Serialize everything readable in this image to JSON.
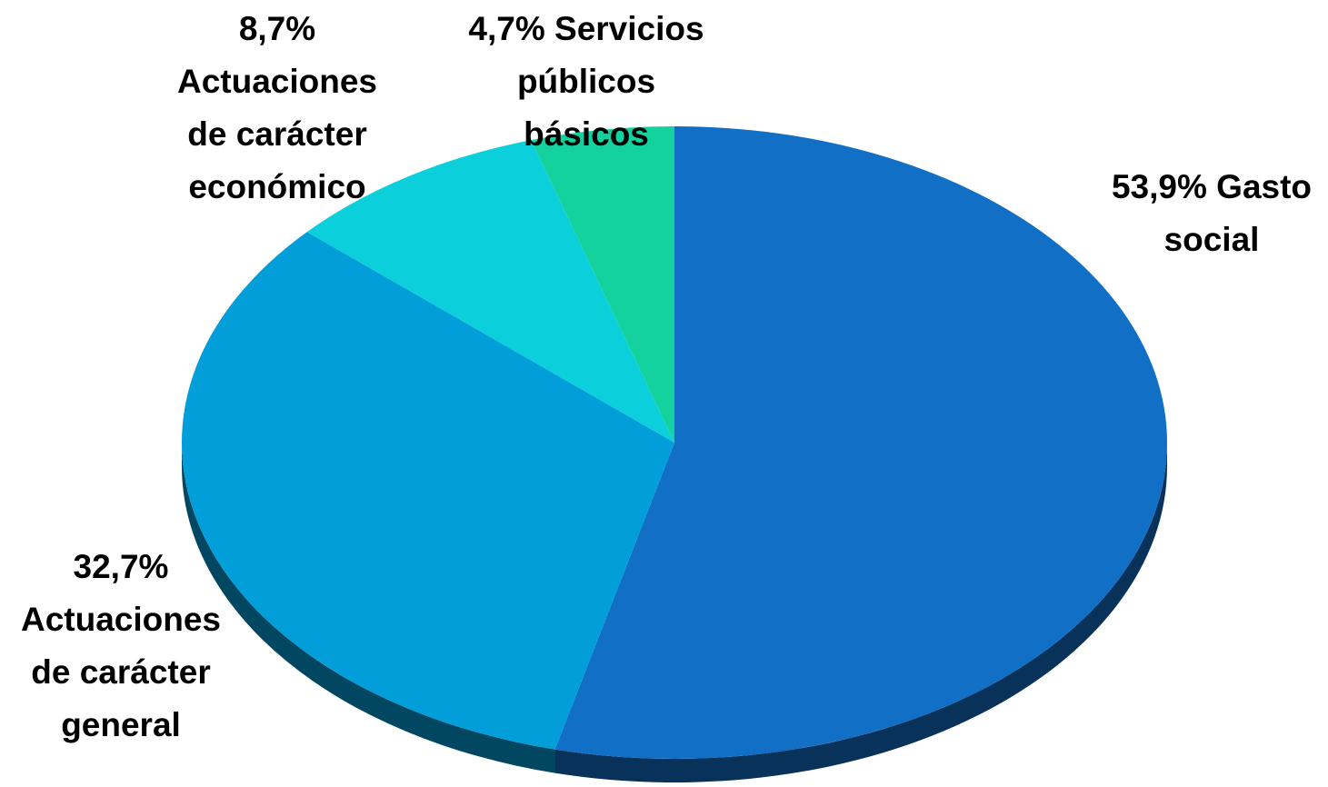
{
  "chart_data": {
    "type": "pie",
    "categories": [
      "Gasto social",
      "Actuaciones de carácter general",
      "Actuaciones de carácter económico",
      "Servicios públicos básicos"
    ],
    "values": [
      53.9,
      32.7,
      8.7,
      4.7
    ],
    "value_labels": [
      "53,9%",
      "32,7%",
      "8,7%",
      "4,7%"
    ],
    "colors": [
      "#1170c6",
      "#029ed9",
      "#0bcfdb",
      "#13d29e"
    ]
  }
}
